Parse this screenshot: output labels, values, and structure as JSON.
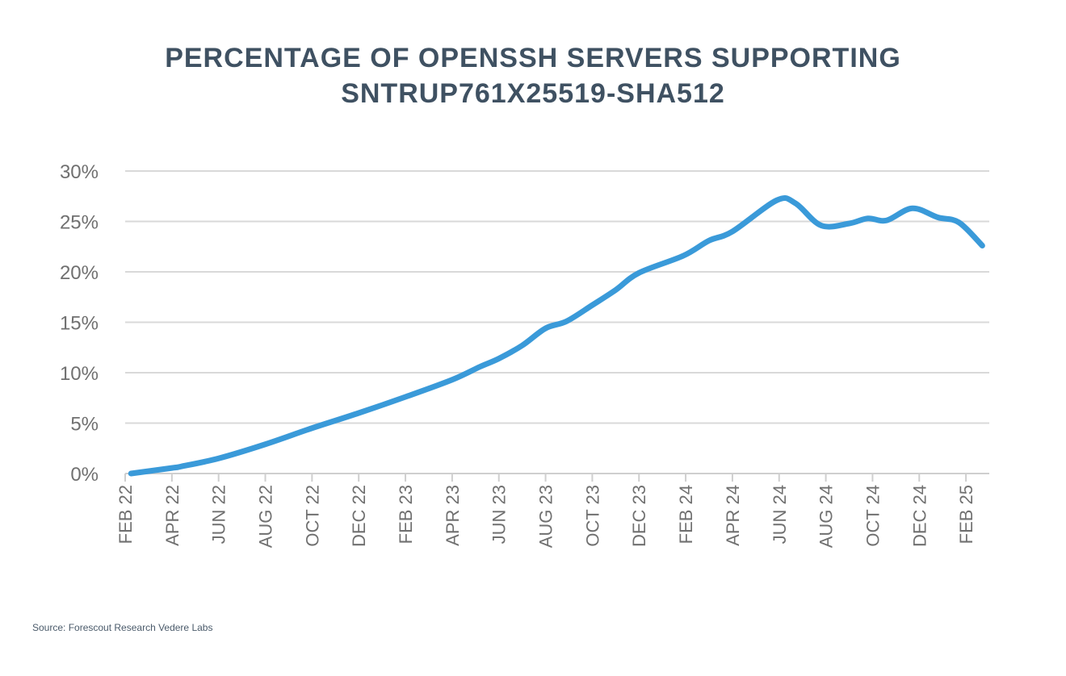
{
  "chart_data": {
    "type": "line",
    "title_lines": [
      "PERCENTAGE OF OPENSSH SERVERS SUPPORTING",
      "SNTRUP761X25519-SHA512"
    ],
    "source": "Source: Forescout Research Vedere Labs",
    "xlabel": "",
    "ylabel": "",
    "ylim": [
      0,
      30
    ],
    "y_ticks": [
      0,
      5,
      10,
      15,
      20,
      25,
      30
    ],
    "y_tick_labels": [
      "0%",
      "5%",
      "10%",
      "15%",
      "20%",
      "25%",
      "30%"
    ],
    "x_tick_labels": [
      "FEB 22",
      "APR 22",
      "JUN 22",
      "AUG 22",
      "OCT 22",
      "DEC 22",
      "FEB 23",
      "APR 23",
      "JUN 23",
      "AUG 23",
      "OCT 23",
      "DEC 23",
      "FEB 24",
      "APR 24",
      "JUN 24",
      "AUG 24",
      "OCT 24",
      "DEC 24",
      "FEB 25"
    ],
    "x_unit": "months since FEB 22",
    "grid": true,
    "line_color": "#3a9ad9",
    "series": [
      {
        "name": "sntrup761x25519-sha512 support",
        "x": [
          0.25,
          2,
          2.4,
          4,
          6,
          8,
          10,
          12,
          14,
          15.2,
          16,
          17,
          18,
          18.9,
          20,
          21,
          22,
          23.9,
          25,
          26,
          27.9,
          28.7,
          29.8,
          31,
          31.8,
          32.6,
          33.7,
          34.8,
          35.7,
          36.7
        ],
        "values": [
          0,
          0.55,
          0.7,
          1.5,
          2.9,
          4.5,
          6.0,
          7.6,
          9.3,
          10.6,
          11.4,
          12.7,
          14.4,
          15.1,
          16.7,
          18.2,
          19.9,
          21.6,
          23.1,
          24.0,
          27.1,
          26.8,
          24.6,
          24.8,
          25.3,
          25.1,
          26.3,
          25.4,
          24.9,
          22.6
        ]
      }
    ]
  }
}
